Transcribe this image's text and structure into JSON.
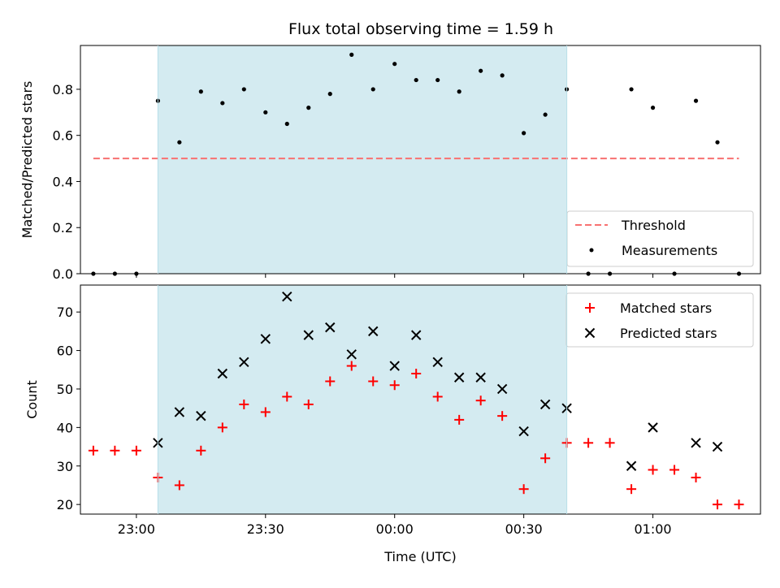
{
  "chart_data": [
    {
      "type": "scatter",
      "title": "Flux total observing time = 1.59 h",
      "xlabel": "",
      "ylabel": "Matched/Predicted stars",
      "ylim": [
        0,
        0.99
      ],
      "yticks": [
        0.0,
        0.2,
        0.4,
        0.6,
        0.8
      ],
      "yticklabels": [
        "0.0",
        "0.2",
        "0.4",
        "0.6",
        "0.8"
      ],
      "xlim": [
        "22:47",
        "01:25"
      ],
      "shaded_span": [
        "23:05",
        "00:40"
      ],
      "shade_color": "#d4ebf1",
      "legend_position": "lower-right",
      "threshold": {
        "name": "Threshold",
        "value": 0.5,
        "x_range": [
          "22:50",
          "01:20"
        ],
        "color": "#f87171",
        "style": "dashed"
      },
      "series": [
        {
          "name": "Measurements",
          "color": "#000000",
          "marker": "dot",
          "x": [
            "22:50",
            "22:55",
            "23:00",
            "23:05",
            "23:10",
            "23:15",
            "23:20",
            "23:25",
            "23:30",
            "23:35",
            "23:40",
            "23:45",
            "23:50",
            "23:55",
            "00:00",
            "00:05",
            "00:10",
            "00:15",
            "00:20",
            "00:25",
            "00:30",
            "00:35",
            "00:40",
            "00:45",
            "00:50",
            "00:55",
            "01:00",
            "01:05",
            "01:10",
            "01:15",
            "01:20"
          ],
          "y": [
            0.0,
            0.0,
            0.0,
            0.75,
            0.57,
            0.79,
            0.74,
            0.8,
            0.7,
            0.65,
            0.72,
            0.78,
            0.95,
            0.8,
            0.91,
            0.84,
            0.84,
            0.79,
            0.88,
            0.86,
            0.61,
            0.69,
            0.8,
            0.0,
            0.0,
            0.8,
            0.72,
            0.0,
            0.75,
            0.57,
            0.0
          ]
        }
      ]
    },
    {
      "type": "scatter",
      "title": "",
      "xlabel": "Time (UTC)",
      "ylabel": "Count",
      "ylim": [
        17.5,
        77
      ],
      "yticks": [
        20,
        30,
        40,
        50,
        60,
        70
      ],
      "yticklabels": [
        "20",
        "30",
        "40",
        "50",
        "60",
        "70"
      ],
      "xlim": [
        "22:47",
        "01:25"
      ],
      "xticks": [
        "23:00",
        "23:30",
        "00:00",
        "00:30",
        "01:00"
      ],
      "xticklabels": [
        "23:00",
        "23:30",
        "00:00",
        "00:30",
        "01:00"
      ],
      "shaded_span": [
        "23:05",
        "00:40"
      ],
      "shade_color": "#d4ebf1",
      "legend_position": "upper-right",
      "series": [
        {
          "name": "Matched stars",
          "color": "#ff0000",
          "marker": "plus",
          "x": [
            "22:50",
            "22:55",
            "23:00",
            "23:05",
            "23:10",
            "23:15",
            "23:20",
            "23:25",
            "23:30",
            "23:35",
            "23:40",
            "23:45",
            "23:50",
            "23:55",
            "00:00",
            "00:05",
            "00:10",
            "00:15",
            "00:20",
            "00:25",
            "00:30",
            "00:35",
            "00:40",
            "00:45",
            "00:50",
            "00:55",
            "01:00",
            "01:05",
            "01:10",
            "01:15",
            "01:20"
          ],
          "y": [
            34,
            34,
            34,
            27,
            25,
            34,
            40,
            46,
            44,
            48,
            46,
            52,
            56,
            52,
            51,
            54,
            48,
            42,
            47,
            43,
            24,
            32,
            36,
            36,
            36,
            24,
            29,
            29,
            27,
            20,
            20
          ]
        },
        {
          "name": "Predicted stars",
          "color": "#000000",
          "marker": "x",
          "x": [
            "23:05",
            "23:10",
            "23:15",
            "23:20",
            "23:25",
            "23:30",
            "23:35",
            "23:40",
            "23:45",
            "23:50",
            "23:55",
            "00:00",
            "00:05",
            "00:10",
            "00:15",
            "00:20",
            "00:25",
            "00:30",
            "00:35",
            "00:40",
            "00:55",
            "01:00",
            "01:10",
            "01:15"
          ],
          "y": [
            36,
            44,
            43,
            54,
            57,
            63,
            74,
            64,
            66,
            59,
            65,
            56,
            64,
            57,
            53,
            53,
            50,
            39,
            46,
            45,
            30,
            40,
            36,
            35
          ]
        }
      ]
    }
  ]
}
